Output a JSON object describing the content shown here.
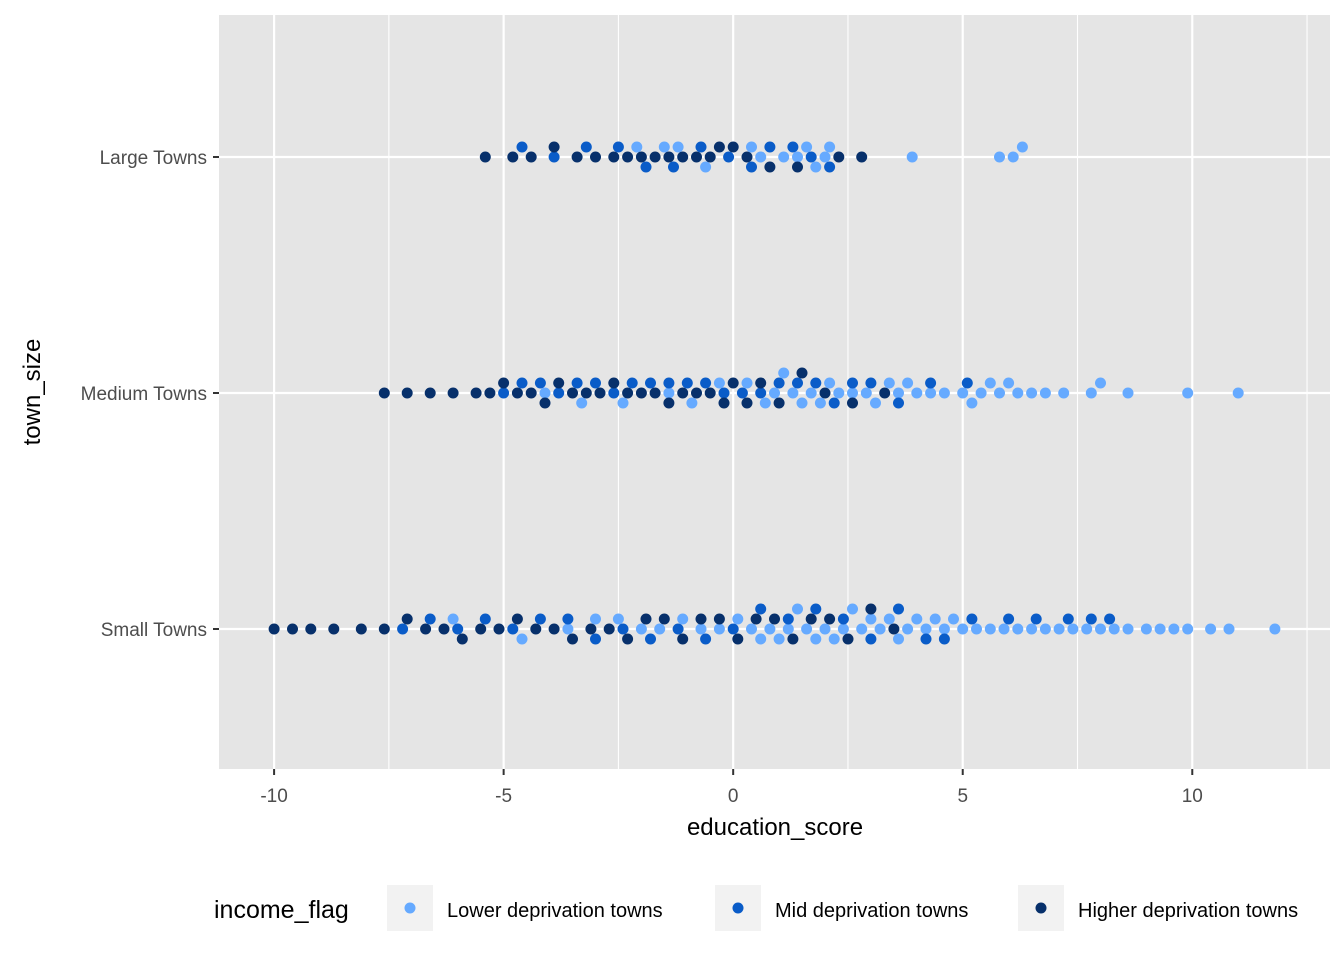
{
  "chart_data": {
    "type": "scatter",
    "subtype": "beeswarm",
    "xlabel": "education_score",
    "ylabel": "town_size",
    "xlim": [
      -11.2,
      13.0
    ],
    "x_ticks": [
      -10,
      -5,
      0,
      5,
      10
    ],
    "x_tick_labels": [
      "-10",
      "-5",
      "0",
      "5",
      "10"
    ],
    "categories": [
      "Large Towns",
      "Medium Towns",
      "Small Towns"
    ],
    "grid": true,
    "legend": {
      "title": "income_flag",
      "position": "bottom",
      "entries": [
        {
          "label": "Lower deprivation towns",
          "color": "#66aaff"
        },
        {
          "label": "Mid deprivation towns",
          "color": "#0a5cc8"
        },
        {
          "label": "Higher deprivation towns",
          "color": "#07306b"
        }
      ]
    },
    "series": [
      {
        "name": "Lower deprivation towns",
        "color": "#66aaff",
        "points": {
          "Large Towns": [
            -2.1,
            -1.5,
            -1.2,
            -0.6,
            0.4,
            0.6,
            1.1,
            1.4,
            1.6,
            1.8,
            2.0,
            2.1,
            3.9,
            5.8,
            6.1,
            6.3
          ],
          "Medium Towns": [
            -4.1,
            -3.3,
            -2.4,
            -1.4,
            -0.9,
            -0.3,
            0.3,
            0.7,
            0.9,
            1.1,
            1.3,
            1.5,
            1.7,
            1.9,
            2.1,
            2.3,
            2.6,
            2.9,
            3.1,
            3.4,
            3.6,
            3.8,
            4.0,
            4.3,
            4.6,
            5.0,
            5.2,
            5.4,
            5.6,
            5.8,
            6.0,
            6.2,
            6.5,
            6.8,
            7.2,
            7.8,
            8.0,
            8.6,
            9.9,
            11.0
          ],
          "Small Towns": [
            -6.1,
            -4.6,
            -3.6,
            -3.0,
            -2.5,
            -2.0,
            -1.6,
            -1.1,
            -0.7,
            -0.3,
            0.1,
            0.4,
            0.6,
            0.8,
            1.0,
            1.2,
            1.4,
            1.6,
            1.8,
            2.0,
            2.2,
            2.4,
            2.6,
            2.8,
            3.0,
            3.2,
            3.4,
            3.6,
            3.8,
            4.0,
            4.2,
            4.4,
            4.6,
            4.8,
            5.0,
            5.3,
            5.6,
            5.9,
            6.2,
            6.5,
            6.8,
            7.1,
            7.4,
            7.7,
            8.0,
            8.3,
            8.6,
            9.0,
            9.3,
            9.6,
            9.9,
            10.4,
            10.8,
            11.8
          ]
        }
      },
      {
        "name": "Mid deprivation towns",
        "color": "#0a5cc8",
        "points": {
          "Large Towns": [
            -4.6,
            -3.9,
            -3.2,
            -2.5,
            -1.9,
            -1.3,
            -0.7,
            -0.1,
            0.4,
            0.8,
            1.3,
            1.7,
            2.1
          ],
          "Medium Towns": [
            -5.0,
            -4.6,
            -4.2,
            -3.8,
            -3.4,
            -3.0,
            -2.6,
            -2.2,
            -1.8,
            -1.4,
            -1.0,
            -0.6,
            -0.2,
            0.2,
            0.6,
            1.0,
            1.4,
            1.8,
            2.2,
            2.6,
            3.0,
            3.6,
            4.3,
            5.1
          ],
          "Small Towns": [
            -7.2,
            -6.6,
            -6.0,
            -5.4,
            -4.8,
            -4.2,
            -3.6,
            -3.0,
            -2.4,
            -1.8,
            -1.2,
            -0.6,
            0.0,
            0.6,
            1.2,
            1.8,
            2.4,
            3.0,
            3.6,
            4.2,
            4.6,
            5.2,
            6.0,
            6.6,
            7.3,
            7.8,
            8.2
          ]
        }
      },
      {
        "name": "Higher deprivation towns",
        "color": "#07306b",
        "points": {
          "Large Towns": [
            -5.4,
            -4.8,
            -4.4,
            -3.9,
            -3.4,
            -3.0,
            -2.6,
            -2.3,
            -2.0,
            -1.7,
            -1.4,
            -1.1,
            -0.8,
            -0.5,
            -0.3,
            0.0,
            0.3,
            0.8,
            1.4,
            2.3,
            2.8
          ],
          "Medium Towns": [
            -7.6,
            -7.1,
            -6.6,
            -6.1,
            -5.6,
            -5.3,
            -5.0,
            -4.7,
            -4.4,
            -4.1,
            -3.8,
            -3.5,
            -3.2,
            -2.9,
            -2.6,
            -2.3,
            -2.0,
            -1.7,
            -1.4,
            -1.1,
            -0.8,
            -0.5,
            -0.2,
            0.0,
            0.3,
            0.6,
            1.0,
            1.5,
            2.0,
            2.6,
            3.3
          ],
          "Small Towns": [
            -10.0,
            -9.6,
            -9.2,
            -8.7,
            -8.1,
            -7.6,
            -7.1,
            -6.7,
            -6.3,
            -5.9,
            -5.5,
            -5.1,
            -4.7,
            -4.3,
            -3.9,
            -3.5,
            -3.1,
            -2.7,
            -2.3,
            -1.9,
            -1.5,
            -1.1,
            -0.7,
            -0.3,
            0.1,
            0.5,
            0.9,
            1.3,
            1.7,
            2.1,
            2.5,
            3.0,
            3.5
          ]
        }
      }
    ]
  }
}
